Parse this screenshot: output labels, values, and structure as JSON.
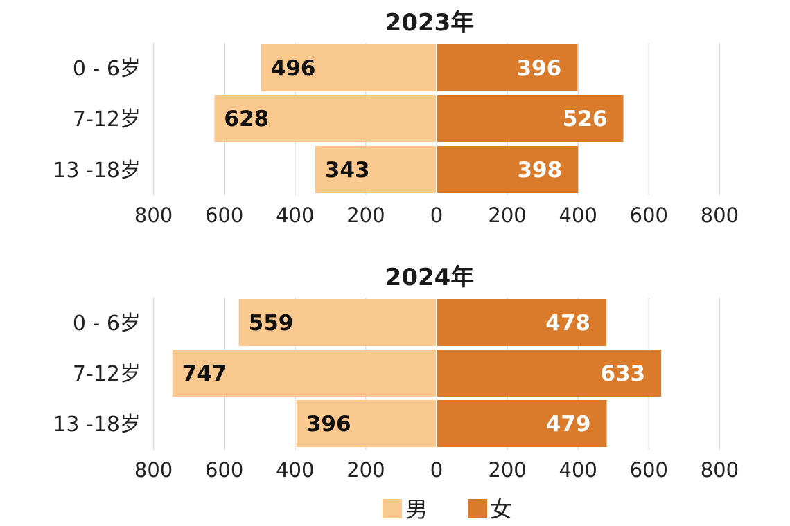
{
  "chart_data": [
    {
      "type": "bar",
      "orientation": "horizontal-diverging",
      "title": "2023年",
      "categories": [
        "0 - 6岁",
        "7-12岁",
        "13 -18岁"
      ],
      "series": [
        {
          "name": "男",
          "values": [
            496,
            628,
            343
          ]
        },
        {
          "name": "女",
          "values": [
            396,
            526,
            398
          ]
        }
      ],
      "xlim": [
        -800,
        800
      ],
      "xticks": [
        "800",
        "600",
        "400",
        "200",
        "0",
        "200",
        "400",
        "600",
        "800"
      ],
      "grid": true
    },
    {
      "type": "bar",
      "orientation": "horizontal-diverging",
      "title": "2024年",
      "categories": [
        "0 - 6岁",
        "7-12岁",
        "13 -18岁"
      ],
      "series": [
        {
          "name": "男",
          "values": [
            559,
            747,
            396
          ]
        },
        {
          "name": "女",
          "values": [
            478,
            633,
            479
          ]
        }
      ],
      "xlim": [
        -800,
        800
      ],
      "xticks": [
        "800",
        "600",
        "400",
        "200",
        "0",
        "200",
        "400",
        "600",
        "800"
      ],
      "grid": true
    }
  ],
  "legend": {
    "placement": "bottom",
    "items": [
      {
        "label": "男",
        "color": "#F9C88F"
      },
      {
        "label": "女",
        "color": "#D97B2B"
      }
    ]
  },
  "colors": {
    "male": "#F9C88F",
    "female": "#D97B2B",
    "grid": "#d9d9d9"
  }
}
